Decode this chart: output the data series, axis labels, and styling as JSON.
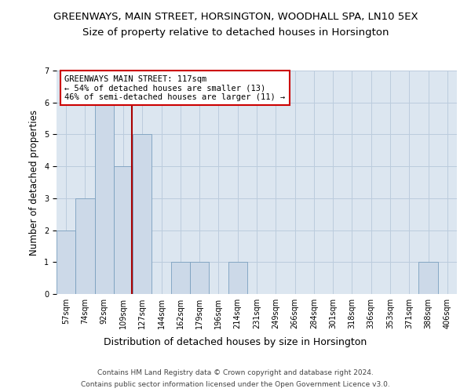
{
  "title": "GREENWAYS, MAIN STREET, HORSINGTON, WOODHALL SPA, LN10 5EX",
  "subtitle": "Size of property relative to detached houses in Horsington",
  "xlabel": "Distribution of detached houses by size in Horsington",
  "ylabel": "Number of detached properties",
  "bar_labels": [
    "57sqm",
    "74sqm",
    "92sqm",
    "109sqm",
    "127sqm",
    "144sqm",
    "162sqm",
    "179sqm",
    "196sqm",
    "214sqm",
    "231sqm",
    "249sqm",
    "266sqm",
    "284sqm",
    "301sqm",
    "318sqm",
    "336sqm",
    "353sqm",
    "371sqm",
    "388sqm",
    "406sqm"
  ],
  "bar_values": [
    2,
    3,
    6,
    4,
    5,
    0,
    1,
    1,
    0,
    1,
    0,
    0,
    0,
    0,
    0,
    0,
    0,
    0,
    0,
    1,
    0
  ],
  "bar_color": "#ccd9e8",
  "bar_edgecolor": "#7a9fbf",
  "annotation_line1": "GREENWAYS MAIN STREET: 117sqm",
  "annotation_line2": "← 54% of detached houses are smaller (13)",
  "annotation_line3": "46% of semi-detached houses are larger (11) →",
  "annotation_box_color": "#ffffff",
  "annotation_box_edgecolor": "#cc0000",
  "redline_color": "#aa0000",
  "ylim": [
    0,
    7
  ],
  "yticks": [
    0,
    1,
    2,
    3,
    4,
    5,
    6,
    7
  ],
  "grid_color": "#bbccdd",
  "background_color": "#dce6f0",
  "footer_line1": "Contains HM Land Registry data © Crown copyright and database right 2024.",
  "footer_line2": "Contains public sector information licensed under the Open Government Licence v3.0.",
  "title_fontsize": 9.5,
  "subtitle_fontsize": 9.5,
  "xlabel_fontsize": 9,
  "ylabel_fontsize": 8.5,
  "tick_fontsize": 7,
  "annotation_fontsize": 7.5,
  "footer_fontsize": 6.5
}
